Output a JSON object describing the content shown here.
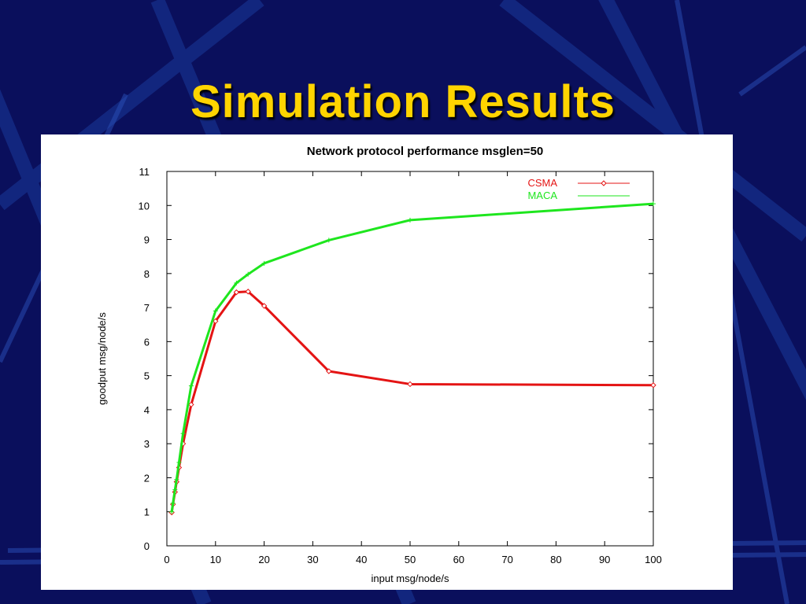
{
  "slide": {
    "title": "Simulation Results"
  },
  "colors": {
    "background": "#0a0f5c",
    "title": "#ffd400",
    "csma": "#e41414",
    "maca": "#1ee61e"
  },
  "chart_data": {
    "type": "line",
    "title": "Network protocol performance msglen=50",
    "xlabel": "input msg/node/s",
    "ylabel": "goodput msg/node/s",
    "xlim": [
      0,
      100
    ],
    "ylim": [
      0,
      11
    ],
    "xticks": [
      0,
      10,
      20,
      30,
      40,
      50,
      60,
      70,
      80,
      90,
      100
    ],
    "yticks": [
      0,
      1,
      2,
      3,
      4,
      5,
      6,
      7,
      8,
      9,
      10,
      11
    ],
    "grid": false,
    "legend_position": "top-right",
    "series": [
      {
        "name": "CSMA",
        "color": "#e41414",
        "marker": "diamond",
        "x": [
          1,
          1.25,
          1.67,
          2,
          2.5,
          3.33,
          5,
          10,
          14.3,
          16.7,
          20,
          33.3,
          50,
          100
        ],
        "y": [
          0.98,
          1.22,
          1.58,
          1.88,
          2.3,
          3.0,
          4.15,
          6.6,
          7.45,
          7.47,
          7.05,
          5.13,
          4.75,
          4.72
        ]
      },
      {
        "name": "MACA",
        "color": "#1ee61e",
        "marker": "plus",
        "x": [
          1,
          1.25,
          1.67,
          2,
          2.5,
          3.33,
          5,
          10,
          14.3,
          16.7,
          20,
          33.3,
          50,
          100
        ],
        "y": [
          1.0,
          1.25,
          1.65,
          1.95,
          2.45,
          3.3,
          4.7,
          6.9,
          7.72,
          7.98,
          8.3,
          8.98,
          9.57,
          10.05
        ]
      }
    ]
  }
}
